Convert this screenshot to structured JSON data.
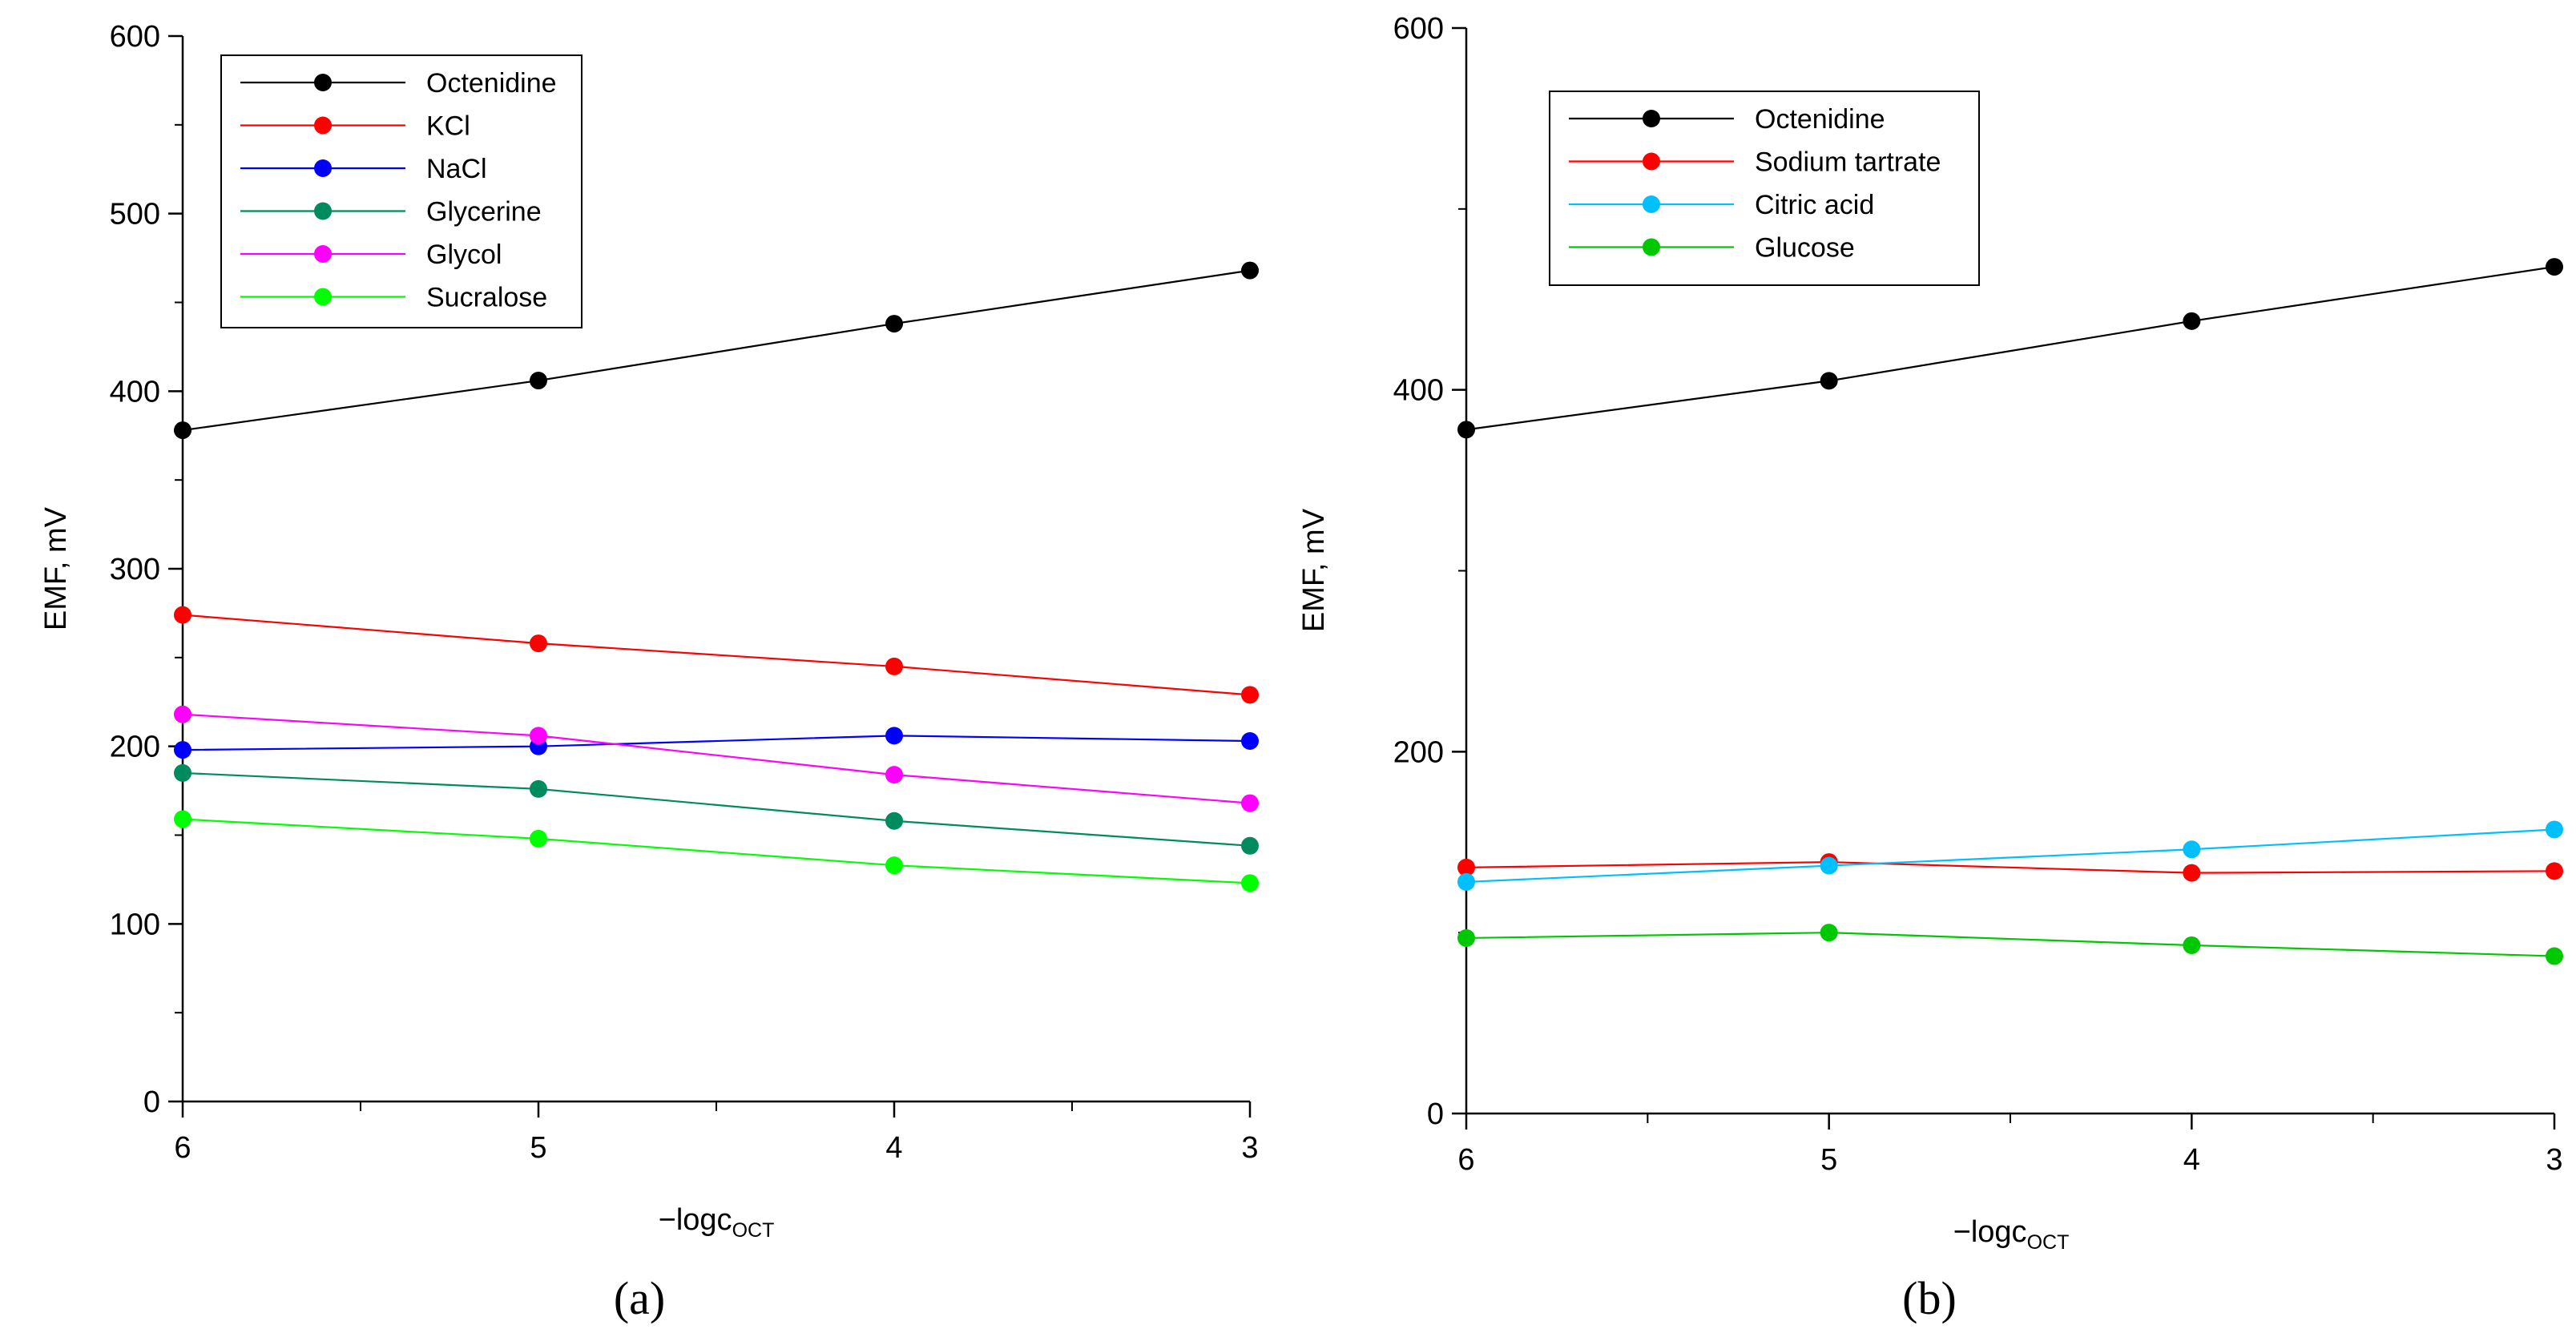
{
  "chart_data": [
    {
      "panel": "(a)",
      "type": "line",
      "xlabel": "−logc",
      "xlabel_sub": "OCT",
      "ylabel": "EMF, mV",
      "x": [
        6,
        5,
        4,
        3
      ],
      "xticks": [
        "6",
        "5",
        "4",
        "3"
      ],
      "ylim": [
        0,
        600
      ],
      "yticks": [
        "0",
        "100",
        "200",
        "300",
        "400",
        "500",
        "600"
      ],
      "grid": false,
      "legend_position": "top-left",
      "series": [
        {
          "name": "Octenidine",
          "color": "#000000",
          "values": [
            378,
            406,
            438,
            468
          ]
        },
        {
          "name": "KCl",
          "color": "#ff0000",
          "values": [
            274,
            258,
            245,
            229
          ]
        },
        {
          "name": "NaCl",
          "color": "#0000ff",
          "values": [
            198,
            200,
            206,
            203
          ]
        },
        {
          "name": "Glycerine",
          "color": "#008b5e",
          "values": [
            185,
            176,
            158,
            144
          ]
        },
        {
          "name": "Glycol",
          "color": "#ff00ff",
          "values": [
            218,
            206,
            184,
            168
          ]
        },
        {
          "name": "Sucralose",
          "color": "#00ff00",
          "values": [
            159,
            148,
            133,
            123
          ]
        }
      ]
    },
    {
      "panel": "(b)",
      "type": "line",
      "xlabel": "−logc",
      "xlabel_sub": "OCT",
      "ylabel": "EMF, mV",
      "x": [
        6,
        5,
        4,
        3
      ],
      "xticks": [
        "6",
        "5",
        "4",
        "3"
      ],
      "ylim": [
        0,
        600
      ],
      "yticks": [
        "0",
        "200",
        "400",
        "600"
      ],
      "grid": false,
      "legend_position": "top-left",
      "series": [
        {
          "name": "Octenidine",
          "color": "#000000",
          "values": [
            378,
            405,
            438,
            468
          ]
        },
        {
          "name": "Sodium tartrate",
          "color": "#ff0000",
          "values": [
            136,
            139,
            133,
            134
          ]
        },
        {
          "name": "Citric acid",
          "color": "#00bfff",
          "values": [
            128,
            137,
            146,
            157
          ]
        },
        {
          "name": "Glucose",
          "color": "#00c800",
          "values": [
            97,
            100,
            93,
            87
          ]
        }
      ]
    }
  ]
}
